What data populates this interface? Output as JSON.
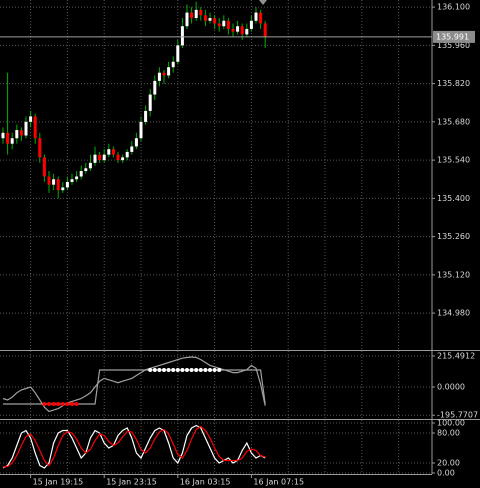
{
  "chart_data": [
    {
      "type": "candlestick",
      "categories": [
        null,
        null,
        null,
        null,
        null,
        null,
        "15 Jan 19:15",
        null,
        null,
        null,
        null,
        null,
        null,
        null,
        null,
        null,
        null,
        null,
        null,
        null,
        null,
        null,
        "15 Jan 23:15",
        null,
        null,
        null,
        null,
        null,
        null,
        null,
        null,
        null,
        null,
        null,
        null,
        null,
        null,
        null,
        "16 Jan 03:15",
        null,
        null,
        null,
        null,
        null,
        null,
        null,
        null,
        null,
        null,
        null,
        null,
        null,
        null,
        null,
        "16 Jan 07:15",
        null,
        null,
        null
      ],
      "open": [
        135.62,
        135.64,
        135.6,
        135.62,
        135.65,
        135.63,
        135.68,
        135.7,
        135.62,
        135.55,
        135.48,
        135.45,
        135.47,
        135.43,
        135.44,
        135.46,
        135.47,
        135.48,
        135.5,
        135.51,
        135.53,
        135.56,
        135.54,
        135.56,
        135.58,
        135.56,
        135.54,
        135.55,
        135.57,
        135.59,
        135.62,
        135.68,
        135.72,
        135.78,
        135.83,
        135.86,
        135.85,
        135.88,
        135.9,
        135.96,
        136.03,
        136.08,
        136.06,
        136.09,
        136.07,
        136.05,
        136.06,
        136.04,
        136.03,
        136.05,
        136.02,
        136.01,
        136.03,
        136.0,
        136.02,
        136.05,
        136.08,
        136.04
      ],
      "high": [
        135.66,
        135.86,
        135.64,
        135.67,
        135.66,
        135.7,
        135.72,
        135.71,
        135.64,
        135.56,
        135.5,
        135.49,
        135.48,
        135.46,
        135.48,
        135.49,
        135.5,
        135.52,
        135.53,
        135.56,
        135.59,
        135.57,
        135.58,
        135.6,
        135.59,
        135.57,
        135.56,
        135.58,
        135.61,
        135.64,
        135.7,
        135.74,
        135.8,
        135.85,
        135.88,
        135.87,
        135.9,
        135.92,
        135.98,
        136.06,
        136.11,
        136.1,
        136.12,
        136.1,
        136.09,
        136.08,
        136.07,
        136.06,
        136.07,
        136.06,
        136.04,
        136.05,
        136.04,
        136.04,
        136.07,
        136.1,
        136.09,
        136.05
      ],
      "low": [
        135.6,
        135.56,
        135.58,
        135.6,
        135.61,
        135.62,
        135.66,
        135.6,
        135.53,
        135.46,
        135.42,
        135.43,
        135.4,
        135.42,
        135.43,
        135.45,
        135.46,
        135.47,
        135.49,
        135.5,
        135.52,
        135.53,
        135.53,
        135.55,
        135.55,
        135.53,
        135.53,
        135.54,
        135.56,
        135.58,
        135.61,
        135.67,
        135.7,
        135.76,
        135.81,
        135.82,
        135.84,
        135.86,
        135.89,
        135.95,
        136.02,
        136.04,
        136.05,
        136.05,
        136.03,
        136.04,
        136.02,
        136.01,
        136.02,
        136.0,
        135.99,
        136.0,
        135.98,
        135.99,
        136.01,
        136.04,
        136.02,
        135.95
      ],
      "close": [
        135.64,
        135.6,
        135.62,
        135.65,
        135.63,
        135.68,
        135.7,
        135.62,
        135.55,
        135.48,
        135.45,
        135.47,
        135.43,
        135.44,
        135.46,
        135.47,
        135.48,
        135.5,
        135.51,
        135.53,
        135.56,
        135.54,
        135.56,
        135.58,
        135.56,
        135.54,
        135.55,
        135.57,
        135.59,
        135.62,
        135.68,
        135.72,
        135.78,
        135.83,
        135.86,
        135.85,
        135.88,
        135.9,
        135.96,
        136.03,
        136.08,
        136.06,
        136.09,
        136.07,
        136.05,
        136.06,
        136.04,
        136.03,
        136.05,
        136.02,
        136.01,
        136.03,
        136.0,
        136.02,
        136.05,
        136.08,
        136.04,
        135.991
      ],
      "up_color": "#ffffff",
      "down_color": "#ff0000",
      "wick_color": "#00b000",
      "current_price": 135.991,
      "ylim": [
        134.845,
        136.126
      ],
      "yticks": [
        {
          "value": 136.1,
          "label": "136.100"
        },
        {
          "value": 135.96,
          "label": "135.960"
        },
        {
          "value": 135.82,
          "label": "135.820"
        },
        {
          "value": 135.68,
          "label": "135.680"
        },
        {
          "value": 135.54,
          "label": "135.540"
        },
        {
          "value": 135.4,
          "label": "135.400"
        },
        {
          "value": 135.26,
          "label": "135.260"
        },
        {
          "value": 135.12,
          "label": "135.120"
        },
        {
          "value": 134.98,
          "label": "134.980"
        }
      ],
      "grid": true
    },
    {
      "type": "line",
      "series": [
        {
          "color": "#a0a0a0",
          "style": "line",
          "values": [
            -80,
            -90,
            -70,
            -40,
            -20,
            -10,
            0,
            -40,
            -90,
            -140,
            -170,
            -160,
            -150,
            -130,
            -110,
            -100,
            -90,
            -80,
            -60,
            -40,
            0,
            40,
            60,
            50,
            40,
            30,
            40,
            50,
            60,
            80,
            100,
            120,
            130,
            140,
            150,
            160,
            170,
            180,
            190,
            200,
            205,
            208,
            205,
            190,
            170,
            150,
            140,
            130,
            120,
            110,
            100,
            100,
            110,
            120,
            150,
            130,
            20,
            -130
          ]
        },
        {
          "color": "#a0a0a0",
          "style": "line",
          "values": [
            -118,
            -118,
            -118,
            -118,
            -118,
            -118,
            -118,
            -118,
            -118,
            -118,
            -118,
            -118,
            -118,
            -118,
            -118,
            -118,
            -118,
            -118,
            -118,
            -118,
            -118,
            118,
            118,
            118,
            118,
            118,
            118,
            118,
            118,
            118,
            118,
            118,
            118,
            118,
            118,
            118,
            118,
            118,
            118,
            118,
            118,
            118,
            118,
            118,
            118,
            118,
            118,
            118,
            118,
            118,
            118,
            118,
            118,
            118,
            118,
            118,
            118,
            -118
          ]
        },
        {
          "color": "#ff0000",
          "style": "dots",
          "values": [
            null,
            null,
            null,
            null,
            null,
            null,
            null,
            null,
            null,
            -118,
            -118,
            -118,
            -118,
            -118,
            -118,
            -118,
            -118,
            null,
            null,
            null,
            null,
            null,
            null,
            null,
            null,
            null,
            null,
            null,
            null,
            null,
            null,
            null,
            null,
            null,
            null,
            null,
            null,
            null,
            null,
            null,
            null,
            null,
            null,
            null,
            null,
            null,
            null,
            null,
            null,
            null,
            null,
            null,
            null,
            null,
            null,
            null,
            null,
            null
          ]
        },
        {
          "color": "#ffffff",
          "style": "dots",
          "values": [
            null,
            null,
            null,
            null,
            null,
            null,
            null,
            null,
            null,
            null,
            null,
            null,
            null,
            null,
            null,
            null,
            null,
            null,
            null,
            null,
            null,
            null,
            null,
            null,
            null,
            null,
            null,
            null,
            null,
            null,
            null,
            null,
            118,
            118,
            118,
            118,
            118,
            118,
            118,
            118,
            118,
            118,
            118,
            118,
            118,
            118,
            118,
            118,
            null,
            null,
            null,
            null,
            null,
            null,
            null,
            null,
            null,
            null
          ]
        }
      ],
      "ylim": [
        -222,
        243
      ],
      "yticks": [
        215.4912,
        {
          "value": 0,
          "label": "0.0000"
        },
        -195.7707
      ],
      "grid": true
    },
    {
      "type": "line",
      "series": [
        {
          "color": "#ffffff",
          "style": "line",
          "values": [
            10,
            15,
            30,
            55,
            80,
            85,
            70,
            40,
            15,
            10,
            20,
            60,
            80,
            85,
            85,
            70,
            50,
            30,
            40,
            70,
            85,
            80,
            60,
            50,
            55,
            75,
            85,
            90,
            70,
            40,
            30,
            50,
            70,
            85,
            90,
            85,
            60,
            30,
            20,
            40,
            75,
            90,
            95,
            90,
            70,
            50,
            30,
            20,
            25,
            30,
            20,
            25,
            45,
            60,
            40,
            30,
            35,
            30
          ]
        },
        {
          "color": "#ff0000",
          "style": "line",
          "values": [
            12,
            13,
            20,
            35,
            55,
            73,
            78,
            65,
            45,
            25,
            15,
            30,
            55,
            75,
            83,
            80,
            68,
            50,
            40,
            47,
            65,
            78,
            75,
            63,
            55,
            60,
            72,
            83,
            82,
            67,
            47,
            40,
            50,
            68,
            82,
            87,
            78,
            58,
            37,
            30,
            45,
            68,
            87,
            93,
            85,
            70,
            50,
            33,
            25,
            25,
            25,
            25,
            30,
            43,
            48,
            45,
            35,
            32
          ]
        }
      ],
      "ylim": [
        -2,
        104
      ],
      "yticks": [
        {
          "value": 100,
          "label": "100.00"
        },
        {
          "value": 80,
          "label": "80.00"
        },
        {
          "value": 20,
          "label": "20.00"
        },
        {
          "value": 0,
          "label": "0.00"
        }
      ],
      "grid": true
    }
  ]
}
